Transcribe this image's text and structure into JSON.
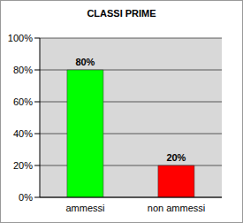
{
  "chart_data": {
    "type": "bar",
    "title": "CLASSI PRIME",
    "categories": [
      "ammessi",
      "non ammessi"
    ],
    "values": [
      80,
      20
    ],
    "value_labels": [
      "80%",
      "20%"
    ],
    "colors": [
      "#00ff00",
      "#ff0000"
    ],
    "ylim": [
      0,
      100
    ],
    "yticks": [
      {
        "value": 0,
        "label": "0%"
      },
      {
        "value": 20,
        "label": "20%"
      },
      {
        "value": 40,
        "label": "40%"
      },
      {
        "value": 60,
        "label": "60%"
      },
      {
        "value": 80,
        "label": "80%"
      },
      {
        "value": 100,
        "label": "100%"
      }
    ],
    "grid": true,
    "data_labels": true
  }
}
